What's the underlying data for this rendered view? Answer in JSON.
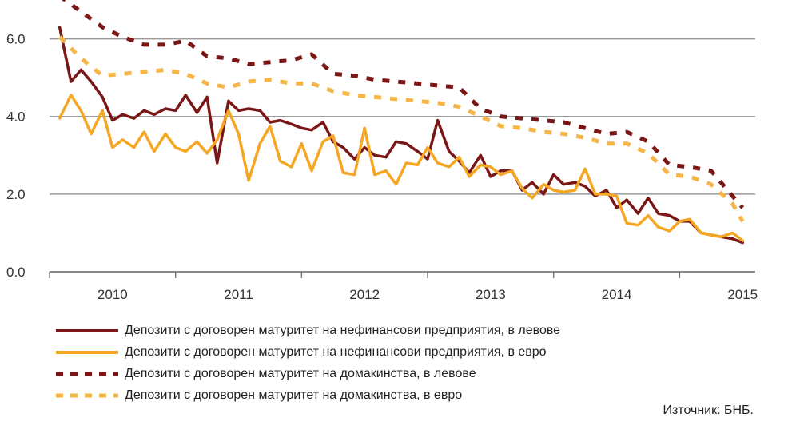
{
  "chart_data": {
    "type": "line",
    "yticks": [
      "0.0",
      "2.0",
      "4.0",
      "6.0"
    ],
    "ylim": [
      0,
      7
    ],
    "xlim": [
      2009.5,
      2015.1
    ],
    "xticks": [
      {
        "label": "2010",
        "x": 2010
      },
      {
        "label": "2011",
        "x": 2011
      },
      {
        "label": "2012",
        "x": 2012
      },
      {
        "label": "2013",
        "x": 2013
      },
      {
        "label": "2014",
        "x": 2014
      },
      {
        "label": "2015",
        "x": 2015
      }
    ],
    "grid": true,
    "series": [
      {
        "name": "Депозити с договорен матуритет на нефинансови предприятия, в левове",
        "color": "#7a1616",
        "dash": "solid",
        "x": [
          2009.58,
          2009.67,
          2009.75,
          2009.83,
          2009.92,
          2010.0,
          2010.08,
          2010.17,
          2010.25,
          2010.33,
          2010.42,
          2010.5,
          2010.58,
          2010.67,
          2010.75,
          2010.83,
          2010.92,
          2011.0,
          2011.08,
          2011.17,
          2011.25,
          2011.33,
          2011.42,
          2011.5,
          2011.58,
          2011.67,
          2011.75,
          2011.83,
          2011.92,
          2012.0,
          2012.08,
          2012.17,
          2012.25,
          2012.33,
          2012.42,
          2012.5,
          2012.58,
          2012.67,
          2012.75,
          2012.83,
          2012.92,
          2013.0,
          2013.08,
          2013.17,
          2013.25,
          2013.33,
          2013.42,
          2013.5,
          2013.58,
          2013.67,
          2013.75,
          2013.83,
          2013.92,
          2014.0,
          2014.08,
          2014.17,
          2014.25,
          2014.33,
          2014.42,
          2014.5,
          2014.58,
          2014.67,
          2014.75,
          2014.83,
          2014.92,
          2015.0
        ],
        "values": [
          6.3,
          4.9,
          5.2,
          4.9,
          4.5,
          3.9,
          4.05,
          3.95,
          4.15,
          4.05,
          4.2,
          4.15,
          4.55,
          4.1,
          4.5,
          2.8,
          4.4,
          4.15,
          4.2,
          4.15,
          3.85,
          3.9,
          3.8,
          3.7,
          3.65,
          3.85,
          3.35,
          3.2,
          2.9,
          3.2,
          3.0,
          2.95,
          3.35,
          3.3,
          3.1,
          2.9,
          3.9,
          3.1,
          2.85,
          2.55,
          3.0,
          2.45,
          2.6,
          2.6,
          2.1,
          2.3,
          2.0,
          2.5,
          2.25,
          2.3,
          2.2,
          1.95,
          2.1,
          1.65,
          1.85,
          1.5,
          1.9,
          1.5,
          1.45,
          1.3,
          1.3,
          1.0,
          0.95,
          0.9,
          0.85,
          0.75
        ]
      },
      {
        "name": "Депозити с договорен матуритет на нефинансови предприятия, в евро",
        "color": "#f5a623",
        "dash": "solid",
        "x": [
          2009.58,
          2009.67,
          2009.75,
          2009.83,
          2009.92,
          2010.0,
          2010.08,
          2010.17,
          2010.25,
          2010.33,
          2010.42,
          2010.5,
          2010.58,
          2010.67,
          2010.75,
          2010.83,
          2010.92,
          2011.0,
          2011.08,
          2011.17,
          2011.25,
          2011.33,
          2011.42,
          2011.5,
          2011.58,
          2011.67,
          2011.75,
          2011.83,
          2011.92,
          2012.0,
          2012.08,
          2012.17,
          2012.25,
          2012.33,
          2012.42,
          2012.5,
          2012.58,
          2012.67,
          2012.75,
          2012.83,
          2012.92,
          2013.0,
          2013.08,
          2013.17,
          2013.25,
          2013.33,
          2013.42,
          2013.5,
          2013.58,
          2013.67,
          2013.75,
          2013.83,
          2013.92,
          2014.0,
          2014.08,
          2014.17,
          2014.25,
          2014.33,
          2014.42,
          2014.5,
          2014.58,
          2014.67,
          2014.75,
          2014.83,
          2014.92,
          2015.0
        ],
        "values": [
          3.95,
          4.55,
          4.15,
          3.55,
          4.15,
          3.2,
          3.4,
          3.2,
          3.6,
          3.1,
          3.55,
          3.2,
          3.1,
          3.35,
          3.05,
          3.4,
          4.15,
          3.55,
          2.35,
          3.3,
          3.75,
          2.85,
          2.7,
          3.3,
          2.6,
          3.35,
          3.5,
          2.55,
          2.5,
          3.7,
          2.5,
          2.6,
          2.25,
          2.8,
          2.75,
          3.2,
          2.8,
          2.7,
          2.95,
          2.45,
          2.75,
          2.7,
          2.5,
          2.6,
          2.15,
          1.9,
          2.25,
          2.1,
          2.05,
          2.1,
          2.65,
          2.0,
          2.0,
          1.95,
          1.25,
          1.2,
          1.45,
          1.15,
          1.05,
          1.3,
          1.35,
          1.0,
          0.95,
          0.9,
          1.0,
          0.8
        ]
      },
      {
        "name": "Депозити с договорен матуритет на домакинства, в левове",
        "color": "#7a1616",
        "dash": "dashed",
        "x": [
          2009.58,
          2009.75,
          2009.92,
          2010.08,
          2010.25,
          2010.42,
          2010.58,
          2010.75,
          2010.92,
          2011.08,
          2011.25,
          2011.42,
          2011.58,
          2011.75,
          2011.92,
          2012.08,
          2012.25,
          2012.42,
          2012.58,
          2012.75,
          2012.92,
          2013.08,
          2013.25,
          2013.42,
          2013.58,
          2013.75,
          2013.92,
          2014.08,
          2014.25,
          2014.42,
          2014.58,
          2014.75,
          2014.92,
          2015.0
        ],
        "values": [
          7.1,
          6.7,
          6.3,
          6.05,
          5.85,
          5.85,
          5.95,
          5.55,
          5.5,
          5.35,
          5.4,
          5.45,
          5.6,
          5.1,
          5.05,
          4.95,
          4.9,
          4.85,
          4.8,
          4.75,
          4.2,
          4.0,
          3.95,
          3.9,
          3.85,
          3.7,
          3.55,
          3.6,
          3.35,
          2.75,
          2.7,
          2.6,
          1.95,
          1.65
        ]
      },
      {
        "name": "Депозити с договорен матуритет на домакинства, в евро",
        "color": "#f5b547",
        "dash": "dashed",
        "x": [
          2009.58,
          2009.75,
          2009.92,
          2010.08,
          2010.25,
          2010.42,
          2010.58,
          2010.75,
          2010.92,
          2011.08,
          2011.25,
          2011.42,
          2011.58,
          2011.75,
          2011.92,
          2012.08,
          2012.25,
          2012.42,
          2012.58,
          2012.75,
          2012.92,
          2013.08,
          2013.25,
          2013.42,
          2013.58,
          2013.75,
          2013.92,
          2014.08,
          2014.25,
          2014.42,
          2014.58,
          2014.75,
          2014.92,
          2015.0
        ],
        "values": [
          6.05,
          5.5,
          5.05,
          5.1,
          5.15,
          5.2,
          5.1,
          4.85,
          4.75,
          4.9,
          4.95,
          4.85,
          4.85,
          4.65,
          4.55,
          4.5,
          4.45,
          4.4,
          4.35,
          4.25,
          4.0,
          3.75,
          3.7,
          3.6,
          3.55,
          3.45,
          3.3,
          3.3,
          3.05,
          2.5,
          2.45,
          2.25,
          1.75,
          1.3
        ]
      }
    ],
    "source": "Източник: БНБ."
  }
}
